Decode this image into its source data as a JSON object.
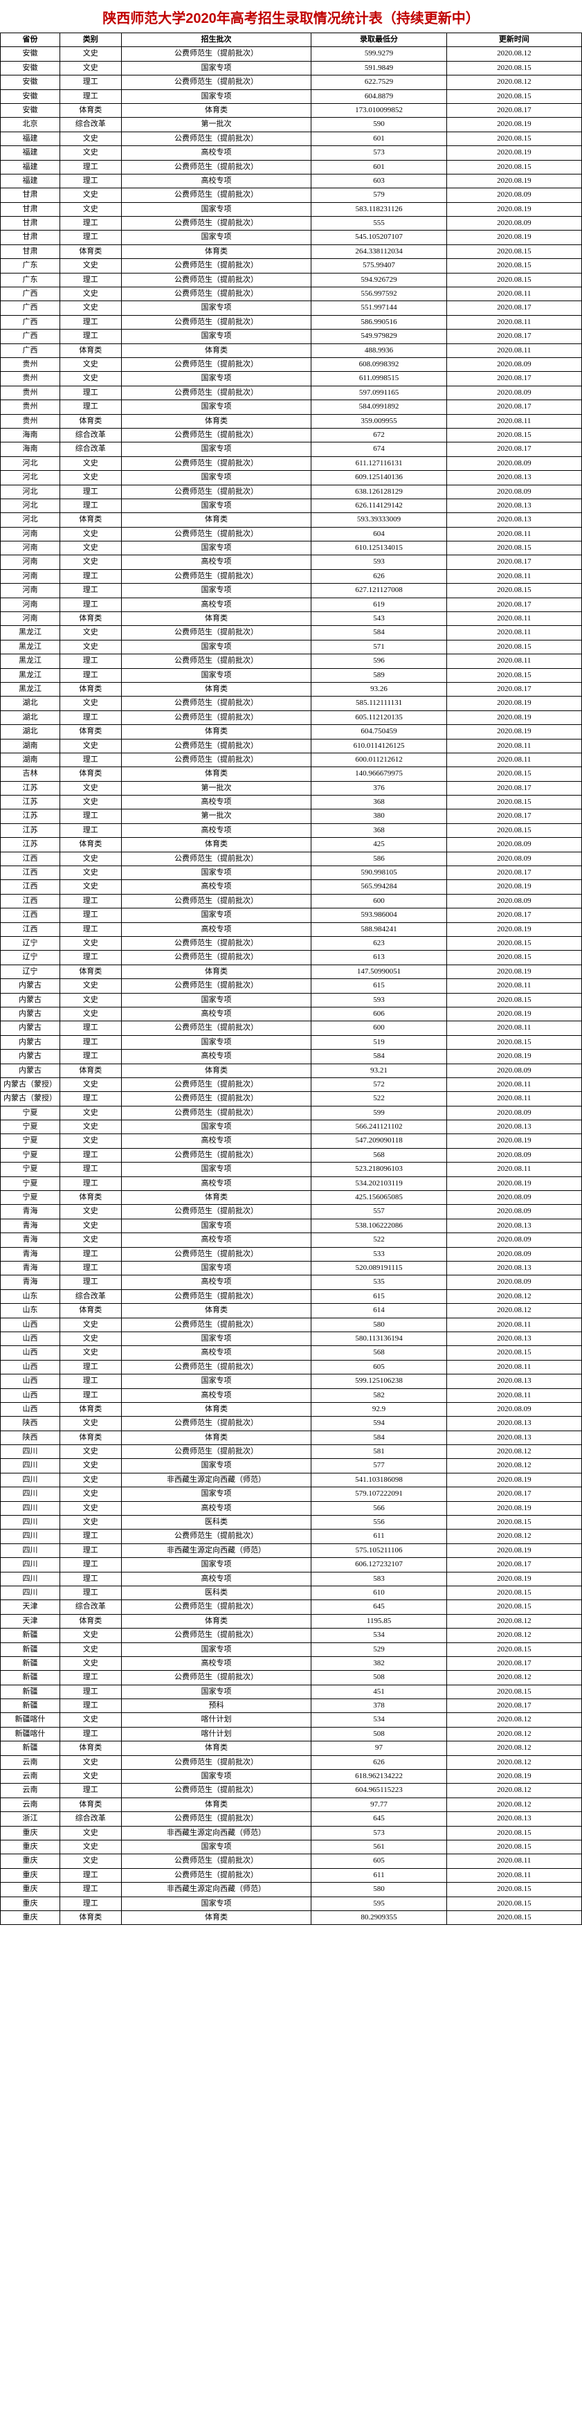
{
  "title": "陕西师范大学2020年高考招生录取情况统计表（持续更新中）",
  "headers": {
    "province": "省份",
    "category": "类别",
    "batch": "招生批次",
    "score": "录取最低分",
    "date": "更新时间"
  },
  "rows": [
    {
      "province": "安徽",
      "category": "文史",
      "batch": "公费师范生（提前批次）",
      "score": "599.9279",
      "date": "2020.08.12"
    },
    {
      "province": "安徽",
      "category": "文史",
      "batch": "国家专项",
      "score": "591.9849",
      "date": "2020.08.15"
    },
    {
      "province": "安徽",
      "category": "理工",
      "batch": "公费师范生（提前批次）",
      "score": "622.7529",
      "date": "2020.08.12"
    },
    {
      "province": "安徽",
      "category": "理工",
      "batch": "国家专项",
      "score": "604.8879",
      "date": "2020.08.15"
    },
    {
      "province": "安徽",
      "category": "体育类",
      "batch": "体育类",
      "score": "173.010099852",
      "date": "2020.08.17"
    },
    {
      "province": "北京",
      "category": "综合改革",
      "batch": "第一批次",
      "score": "590",
      "date": "2020.08.19"
    },
    {
      "province": "福建",
      "category": "文史",
      "batch": "公费师范生（提前批次）",
      "score": "601",
      "date": "2020.08.15"
    },
    {
      "province": "福建",
      "category": "文史",
      "batch": "高校专项",
      "score": "573",
      "date": "2020.08.19"
    },
    {
      "province": "福建",
      "category": "理工",
      "batch": "公费师范生（提前批次）",
      "score": "601",
      "date": "2020.08.15"
    },
    {
      "province": "福建",
      "category": "理工",
      "batch": "高校专项",
      "score": "603",
      "date": "2020.08.19"
    },
    {
      "province": "甘肃",
      "category": "文史",
      "batch": "公费师范生（提前批次）",
      "score": "579",
      "date": "2020.08.09"
    },
    {
      "province": "甘肃",
      "category": "文史",
      "batch": "国家专项",
      "score": "583.118231126",
      "date": "2020.08.19"
    },
    {
      "province": "甘肃",
      "category": "理工",
      "batch": "公费师范生（提前批次）",
      "score": "555",
      "date": "2020.08.09"
    },
    {
      "province": "甘肃",
      "category": "理工",
      "batch": "国家专项",
      "score": "545.105207107",
      "date": "2020.08.19"
    },
    {
      "province": "甘肃",
      "category": "体育类",
      "batch": "体育类",
      "score": "264.338112034",
      "date": "2020.08.15"
    },
    {
      "province": "广东",
      "category": "文史",
      "batch": "公费师范生（提前批次）",
      "score": "575.99407",
      "date": "2020.08.15"
    },
    {
      "province": "广东",
      "category": "理工",
      "batch": "公费师范生（提前批次）",
      "score": "594.926729",
      "date": "2020.08.15"
    },
    {
      "province": "广西",
      "category": "文史",
      "batch": "公费师范生（提前批次）",
      "score": "556.997592",
      "date": "2020.08.11"
    },
    {
      "province": "广西",
      "category": "文史",
      "batch": "国家专项",
      "score": "551.997144",
      "date": "2020.08.17"
    },
    {
      "province": "广西",
      "category": "理工",
      "batch": "公费师范生（提前批次）",
      "score": "586.990516",
      "date": "2020.08.11"
    },
    {
      "province": "广西",
      "category": "理工",
      "batch": "国家专项",
      "score": "549.979829",
      "date": "2020.08.17"
    },
    {
      "province": "广西",
      "category": "体育类",
      "batch": "体育类",
      "score": "488.9936",
      "date": "2020.08.11"
    },
    {
      "province": "贵州",
      "category": "文史",
      "batch": "公费师范生（提前批次）",
      "score": "608.0998392",
      "date": "2020.08.09"
    },
    {
      "province": "贵州",
      "category": "文史",
      "batch": "国家专项",
      "score": "611.0998515",
      "date": "2020.08.17"
    },
    {
      "province": "贵州",
      "category": "理工",
      "batch": "公费师范生（提前批次）",
      "score": "597.0991165",
      "date": "2020.08.09"
    },
    {
      "province": "贵州",
      "category": "理工",
      "batch": "国家专项",
      "score": "584.0991892",
      "date": "2020.08.17"
    },
    {
      "province": "贵州",
      "category": "体育类",
      "batch": "体育类",
      "score": "359.009955",
      "date": "2020.08.11"
    },
    {
      "province": "海南",
      "category": "综合改革",
      "batch": "公费师范生（提前批次）",
      "score": "672",
      "date": "2020.08.15"
    },
    {
      "province": "海南",
      "category": "综合改革",
      "batch": "国家专项",
      "score": "674",
      "date": "2020.08.17"
    },
    {
      "province": "河北",
      "category": "文史",
      "batch": "公费师范生（提前批次）",
      "score": "611.127116131",
      "date": "2020.08.09"
    },
    {
      "province": "河北",
      "category": "文史",
      "batch": "国家专项",
      "score": "609.125140136",
      "date": "2020.08.13"
    },
    {
      "province": "河北",
      "category": "理工",
      "batch": "公费师范生（提前批次）",
      "score": "638.126128129",
      "date": "2020.08.09"
    },
    {
      "province": "河北",
      "category": "理工",
      "batch": "国家专项",
      "score": "626.114129142",
      "date": "2020.08.13"
    },
    {
      "province": "河北",
      "category": "体育类",
      "batch": "体育类",
      "score": "593.39333009",
      "date": "2020.08.13"
    },
    {
      "province": "河南",
      "category": "文史",
      "batch": "公费师范生（提前批次）",
      "score": "604",
      "date": "2020.08.11"
    },
    {
      "province": "河南",
      "category": "文史",
      "batch": "国家专项",
      "score": "610.125134015",
      "date": "2020.08.15"
    },
    {
      "province": "河南",
      "category": "文史",
      "batch": "高校专项",
      "score": "593",
      "date": "2020.08.17"
    },
    {
      "province": "河南",
      "category": "理工",
      "batch": "公费师范生（提前批次）",
      "score": "626",
      "date": "2020.08.11"
    },
    {
      "province": "河南",
      "category": "理工",
      "batch": "国家专项",
      "score": "627.121127008",
      "date": "2020.08.15"
    },
    {
      "province": "河南",
      "category": "理工",
      "batch": "高校专项",
      "score": "619",
      "date": "2020.08.17"
    },
    {
      "province": "河南",
      "category": "体育类",
      "batch": "体育类",
      "score": "543",
      "date": "2020.08.11"
    },
    {
      "province": "黑龙江",
      "category": "文史",
      "batch": "公费师范生（提前批次）",
      "score": "584",
      "date": "2020.08.11"
    },
    {
      "province": "黑龙江",
      "category": "文史",
      "batch": "国家专项",
      "score": "571",
      "date": "2020.08.15"
    },
    {
      "province": "黑龙江",
      "category": "理工",
      "batch": "公费师范生（提前批次）",
      "score": "596",
      "date": "2020.08.11"
    },
    {
      "province": "黑龙江",
      "category": "理工",
      "batch": "国家专项",
      "score": "589",
      "date": "2020.08.15"
    },
    {
      "province": "黑龙江",
      "category": "体育类",
      "batch": "体育类",
      "score": "93.26",
      "date": "2020.08.17"
    },
    {
      "province": "湖北",
      "category": "文史",
      "batch": "公费师范生（提前批次）",
      "score": "585.112111131",
      "date": "2020.08.19"
    },
    {
      "province": "湖北",
      "category": "理工",
      "batch": "公费师范生（提前批次）",
      "score": "605.112120135",
      "date": "2020.08.19"
    },
    {
      "province": "湖北",
      "category": "体育类",
      "batch": "体育类",
      "score": "604.750459",
      "date": "2020.08.19"
    },
    {
      "province": "湖南",
      "category": "文史",
      "batch": "公费师范生（提前批次）",
      "score": "610.0114126125",
      "date": "2020.08.11"
    },
    {
      "province": "湖南",
      "category": "理工",
      "batch": "公费师范生（提前批次）",
      "score": "600.011212612",
      "date": "2020.08.11"
    },
    {
      "province": "吉林",
      "category": "体育类",
      "batch": "体育类",
      "score": "140.966679975",
      "date": "2020.08.15"
    },
    {
      "province": "江苏",
      "category": "文史",
      "batch": "第一批次",
      "score": "376",
      "date": "2020.08.17"
    },
    {
      "province": "江苏",
      "category": "文史",
      "batch": "高校专项",
      "score": "368",
      "date": "2020.08.15"
    },
    {
      "province": "江苏",
      "category": "理工",
      "batch": "第一批次",
      "score": "380",
      "date": "2020.08.17"
    },
    {
      "province": "江苏",
      "category": "理工",
      "batch": "高校专项",
      "score": "368",
      "date": "2020.08.15"
    },
    {
      "province": "江苏",
      "category": "体育类",
      "batch": "体育类",
      "score": "425",
      "date": "2020.08.09"
    },
    {
      "province": "江西",
      "category": "文史",
      "batch": "公费师范生（提前批次）",
      "score": "586",
      "date": "2020.08.09"
    },
    {
      "province": "江西",
      "category": "文史",
      "batch": "国家专项",
      "score": "590.998105",
      "date": "2020.08.17"
    },
    {
      "province": "江西",
      "category": "文史",
      "batch": "高校专项",
      "score": "565.994284",
      "date": "2020.08.19"
    },
    {
      "province": "江西",
      "category": "理工",
      "batch": "公费师范生（提前批次）",
      "score": "600",
      "date": "2020.08.09"
    },
    {
      "province": "江西",
      "category": "理工",
      "batch": "国家专项",
      "score": "593.986004",
      "date": "2020.08.17"
    },
    {
      "province": "江西",
      "category": "理工",
      "batch": "高校专项",
      "score": "588.984241",
      "date": "2020.08.19"
    },
    {
      "province": "辽宁",
      "category": "文史",
      "batch": "公费师范生（提前批次）",
      "score": "623",
      "date": "2020.08.15"
    },
    {
      "province": "辽宁",
      "category": "理工",
      "batch": "公费师范生（提前批次）",
      "score": "613",
      "date": "2020.08.15"
    },
    {
      "province": "辽宁",
      "category": "体育类",
      "batch": "体育类",
      "score": "147.50990051",
      "date": "2020.08.19"
    },
    {
      "province": "内蒙古",
      "category": "文史",
      "batch": "公费师范生（提前批次）",
      "score": "615",
      "date": "2020.08.11"
    },
    {
      "province": "内蒙古",
      "category": "文史",
      "batch": "国家专项",
      "score": "593",
      "date": "2020.08.15"
    },
    {
      "province": "内蒙古",
      "category": "文史",
      "batch": "高校专项",
      "score": "606",
      "date": "2020.08.19"
    },
    {
      "province": "内蒙古",
      "category": "理工",
      "batch": "公费师范生（提前批次）",
      "score": "600",
      "date": "2020.08.11"
    },
    {
      "province": "内蒙古",
      "category": "理工",
      "batch": "国家专项",
      "score": "519",
      "date": "2020.08.15"
    },
    {
      "province": "内蒙古",
      "category": "理工",
      "batch": "高校专项",
      "score": "584",
      "date": "2020.08.19"
    },
    {
      "province": "内蒙古",
      "category": "体育类",
      "batch": "体育类",
      "score": "93.21",
      "date": "2020.08.09"
    },
    {
      "province": "内蒙古（蒙授）",
      "category": "文史",
      "batch": "公费师范生（提前批次）",
      "score": "572",
      "date": "2020.08.11"
    },
    {
      "province": "内蒙古（蒙授）",
      "category": "理工",
      "batch": "公费师范生（提前批次）",
      "score": "522",
      "date": "2020.08.11"
    },
    {
      "province": "宁夏",
      "category": "文史",
      "batch": "公费师范生（提前批次）",
      "score": "599",
      "date": "2020.08.09"
    },
    {
      "province": "宁夏",
      "category": "文史",
      "batch": "国家专项",
      "score": "566.241121102",
      "date": "2020.08.13"
    },
    {
      "province": "宁夏",
      "category": "文史",
      "batch": "高校专项",
      "score": "547.209090118",
      "date": "2020.08.19"
    },
    {
      "province": "宁夏",
      "category": "理工",
      "batch": "公费师范生（提前批次）",
      "score": "568",
      "date": "2020.08.09"
    },
    {
      "province": "宁夏",
      "category": "理工",
      "batch": "国家专项",
      "score": "523.218096103",
      "date": "2020.08.11"
    },
    {
      "province": "宁夏",
      "category": "理工",
      "batch": "高校专项",
      "score": "534.202103119",
      "date": "2020.08.19"
    },
    {
      "province": "宁夏",
      "category": "体育类",
      "batch": "体育类",
      "score": "425.156065085",
      "date": "2020.08.09"
    },
    {
      "province": "青海",
      "category": "文史",
      "batch": "公费师范生（提前批次）",
      "score": "557",
      "date": "2020.08.09"
    },
    {
      "province": "青海",
      "category": "文史",
      "batch": "国家专项",
      "score": "538.106222086",
      "date": "2020.08.13"
    },
    {
      "province": "青海",
      "category": "文史",
      "batch": "高校专项",
      "score": "522",
      "date": "2020.08.09"
    },
    {
      "province": "青海",
      "category": "理工",
      "batch": "公费师范生（提前批次）",
      "score": "533",
      "date": "2020.08.09"
    },
    {
      "province": "青海",
      "category": "理工",
      "batch": "国家专项",
      "score": "520.089191115",
      "date": "2020.08.13"
    },
    {
      "province": "青海",
      "category": "理工",
      "batch": "高校专项",
      "score": "535",
      "date": "2020.08.09"
    },
    {
      "province": "山东",
      "category": "综合改革",
      "batch": "公费师范生（提前批次）",
      "score": "615",
      "date": "2020.08.12"
    },
    {
      "province": "山东",
      "category": "体育类",
      "batch": "体育类",
      "score": "614",
      "date": "2020.08.12"
    },
    {
      "province": "山西",
      "category": "文史",
      "batch": "公费师范生（提前批次）",
      "score": "580",
      "date": "2020.08.11"
    },
    {
      "province": "山西",
      "category": "文史",
      "batch": "国家专项",
      "score": "580.113136194",
      "date": "2020.08.13"
    },
    {
      "province": "山西",
      "category": "文史",
      "batch": "高校专项",
      "score": "568",
      "date": "2020.08.15"
    },
    {
      "province": "山西",
      "category": "理工",
      "batch": "公费师范生（提前批次）",
      "score": "605",
      "date": "2020.08.11"
    },
    {
      "province": "山西",
      "category": "理工",
      "batch": "国家专项",
      "score": "599.125106238",
      "date": "2020.08.13"
    },
    {
      "province": "山西",
      "category": "理工",
      "batch": "高校专项",
      "score": "582",
      "date": "2020.08.11"
    },
    {
      "province": "山西",
      "category": "体育类",
      "batch": "体育类",
      "score": "92.9",
      "date": "2020.08.09"
    },
    {
      "province": "陕西",
      "category": "文史",
      "batch": "公费师范生（提前批次）",
      "score": "594",
      "date": "2020.08.13"
    },
    {
      "province": "陕西",
      "category": "体育类",
      "batch": "体育类",
      "score": "584",
      "date": "2020.08.13"
    },
    {
      "province": "四川",
      "category": "文史",
      "batch": "公费师范生（提前批次）",
      "score": "581",
      "date": "2020.08.12"
    },
    {
      "province": "四川",
      "category": "文史",
      "batch": "国家专项",
      "score": "577",
      "date": "2020.08.12"
    },
    {
      "province": "四川",
      "category": "文史",
      "batch": "非西藏生源定向西藏（师范）",
      "score": "541.103186098",
      "date": "2020.08.19"
    },
    {
      "province": "四川",
      "category": "文史",
      "batch": "国家专项",
      "score": "579.107222091",
      "date": "2020.08.17"
    },
    {
      "province": "四川",
      "category": "文史",
      "batch": "高校专项",
      "score": "566",
      "date": "2020.08.19"
    },
    {
      "province": "四川",
      "category": "文史",
      "batch": "医科类",
      "score": "556",
      "date": "2020.08.15"
    },
    {
      "province": "四川",
      "category": "理工",
      "batch": "公费师范生（提前批次）",
      "score": "611",
      "date": "2020.08.12"
    },
    {
      "province": "四川",
      "category": "理工",
      "batch": "非西藏生源定向西藏（师范）",
      "score": "575.105211106",
      "date": "2020.08.19"
    },
    {
      "province": "四川",
      "category": "理工",
      "batch": "国家专项",
      "score": "606.127232107",
      "date": "2020.08.17"
    },
    {
      "province": "四川",
      "category": "理工",
      "batch": "高校专项",
      "score": "583",
      "date": "2020.08.19"
    },
    {
      "province": "四川",
      "category": "理工",
      "batch": "医科类",
      "score": "610",
      "date": "2020.08.15"
    },
    {
      "province": "天津",
      "category": "综合改革",
      "batch": "公费师范生（提前批次）",
      "score": "645",
      "date": "2020.08.15"
    },
    {
      "province": "天津",
      "category": "体育类",
      "batch": "体育类",
      "score": "1195.85",
      "date": "2020.08.12"
    },
    {
      "province": "新疆",
      "category": "文史",
      "batch": "公费师范生（提前批次）",
      "score": "534",
      "date": "2020.08.12"
    },
    {
      "province": "新疆",
      "category": "文史",
      "batch": "国家专项",
      "score": "529",
      "date": "2020.08.15"
    },
    {
      "province": "新疆",
      "category": "文史",
      "batch": "高校专项",
      "score": "382",
      "date": "2020.08.17"
    },
    {
      "province": "新疆",
      "category": "理工",
      "batch": "公费师范生（提前批次）",
      "score": "508",
      "date": "2020.08.12"
    },
    {
      "province": "新疆",
      "category": "理工",
      "batch": "国家专项",
      "score": "451",
      "date": "2020.08.15"
    },
    {
      "province": "新疆",
      "category": "理工",
      "batch": "预科",
      "score": "378",
      "date": "2020.08.17"
    },
    {
      "province": "新疆喀什",
      "category": "文史",
      "batch": "喀什计划",
      "score": "534",
      "date": "2020.08.12"
    },
    {
      "province": "新疆喀什",
      "category": "理工",
      "batch": "喀什计划",
      "score": "508",
      "date": "2020.08.12"
    },
    {
      "province": "新疆",
      "category": "体育类",
      "batch": "体育类",
      "score": "97",
      "date": "2020.08.12"
    },
    {
      "province": "云南",
      "category": "文史",
      "batch": "公费师范生（提前批次）",
      "score": "626",
      "date": "2020.08.12"
    },
    {
      "province": "云南",
      "category": "文史",
      "batch": "国家专项",
      "score": "618.962134222",
      "date": "2020.08.19"
    },
    {
      "province": "云南",
      "category": "理工",
      "batch": "公费师范生（提前批次）",
      "score": "604.965115223",
      "date": "2020.08.12"
    },
    {
      "province": "云南",
      "category": "体育类",
      "batch": "体育类",
      "score": "97.77",
      "date": "2020.08.12"
    },
    {
      "province": "浙江",
      "category": "综合改革",
      "batch": "公费师范生（提前批次）",
      "score": "645",
      "date": "2020.08.13"
    },
    {
      "province": "重庆",
      "category": "文史",
      "batch": "非西藏生源定向西藏（师范）",
      "score": "573",
      "date": "2020.08.15"
    },
    {
      "province": "重庆",
      "category": "文史",
      "batch": "国家专项",
      "score": "561",
      "date": "2020.08.15"
    },
    {
      "province": "重庆",
      "category": "文史",
      "batch": "公费师范生（提前批次）",
      "score": "605",
      "date": "2020.08.11"
    },
    {
      "province": "重庆",
      "category": "理工",
      "batch": "公费师范生（提前批次）",
      "score": "611",
      "date": "2020.08.11"
    },
    {
      "province": "重庆",
      "category": "理工",
      "batch": "非西藏生源定向西藏（师范）",
      "score": "580",
      "date": "2020.08.15"
    },
    {
      "province": "重庆",
      "category": "理工",
      "batch": "国家专项",
      "score": "595",
      "date": "2020.08.15"
    },
    {
      "province": "重庆",
      "category": "体育类",
      "batch": "体育类",
      "score": "80.2909355",
      "date": "2020.08.15"
    }
  ]
}
